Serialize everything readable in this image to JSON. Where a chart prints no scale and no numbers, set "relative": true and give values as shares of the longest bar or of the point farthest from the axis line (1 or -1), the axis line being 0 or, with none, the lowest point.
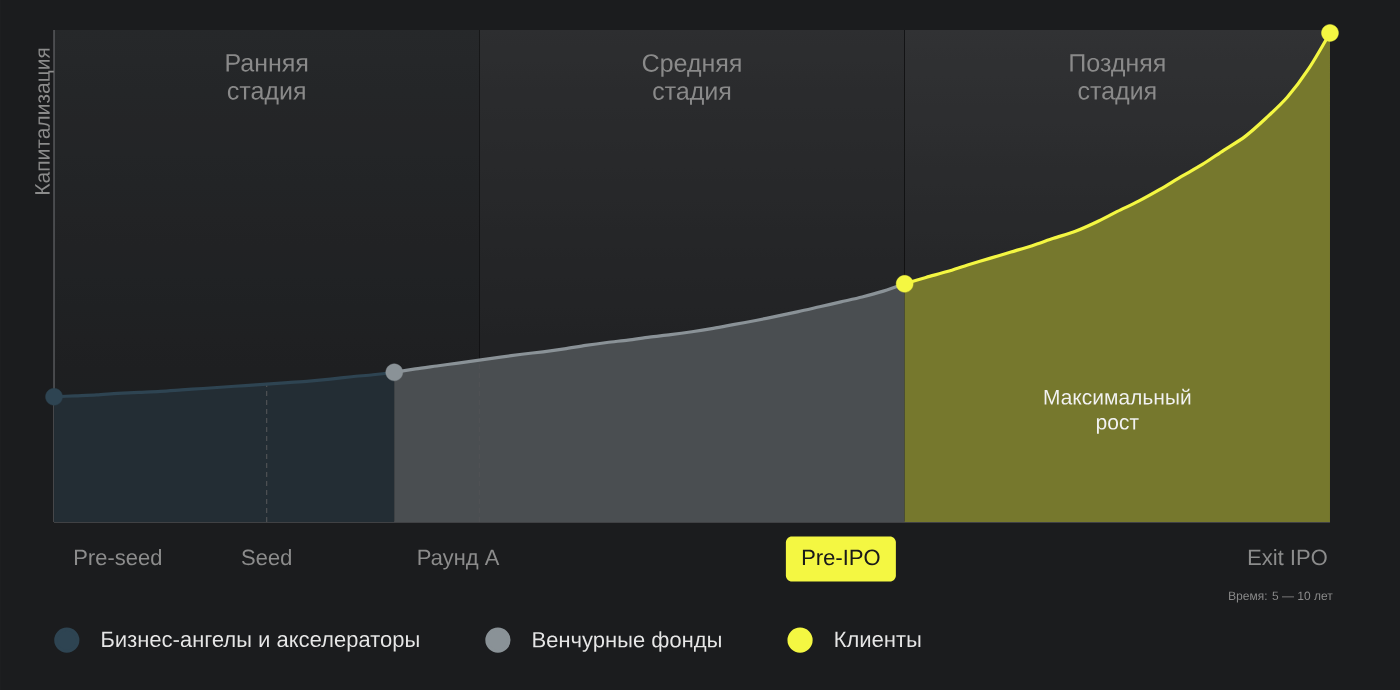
{
  "chart_data": {
    "type": "area",
    "relative": true,
    "ylabel": "Капитализация",
    "categories": [
      null,
      null,
      null,
      "Pre-seed",
      null,
      null,
      null,
      null,
      null,
      null,
      "Seed",
      null,
      null,
      null,
      null,
      null,
      null,
      null,
      null,
      "Раунд А",
      null,
      null,
      null,
      null,
      null,
      null,
      null,
      null,
      null,
      null,
      null,
      null,
      null,
      null,
      null,
      null,
      null,
      "Pre-IPO",
      null,
      null,
      null,
      null,
      null,
      null,
      null,
      null,
      null,
      null,
      null,
      null,
      null,
      null,
      null,
      null,
      null,
      null,
      null,
      null,
      "Exit IPO",
      null,
      null
    ],
    "tick_labels": "x",
    "series": [
      {
        "name": "Бизнес-ангелы и акселераторы",
        "color": "#2e4452",
        "values": [
          0.256,
          0.258,
          0.26,
          0.263,
          0.265,
          0.267,
          0.27,
          0.273,
          0.276,
          0.279,
          0.282,
          0.285,
          0.288,
          0.292,
          0.297,
          0.301,
          0.306,
          null,
          null,
          null,
          null,
          null,
          null,
          null,
          null,
          null,
          null,
          null,
          null,
          null,
          null,
          null,
          null,
          null,
          null,
          null,
          null,
          null,
          null,
          null,
          null,
          null,
          null,
          null,
          null,
          null,
          null,
          null,
          null,
          null,
          null,
          null,
          null,
          null,
          null,
          null,
          null,
          null,
          null,
          null,
          null
        ]
      },
      {
        "name": "Венчурные фонды",
        "color": "#8a9297",
        "values": [
          null,
          null,
          null,
          null,
          null,
          null,
          null,
          null,
          null,
          null,
          null,
          null,
          null,
          null,
          null,
          null,
          0.306,
          0.313,
          0.319,
          0.325,
          0.331,
          0.337,
          0.343,
          0.348,
          0.354,
          0.361,
          0.367,
          0.372,
          0.378,
          0.383,
          0.389,
          0.396,
          0.404,
          0.412,
          0.421,
          0.43,
          0.44,
          0.45,
          0.46,
          0.472,
          0.487,
          null,
          null,
          null,
          null,
          null,
          null,
          null,
          null,
          null,
          null,
          null,
          null,
          null,
          null,
          null,
          null,
          null,
          null,
          null,
          null
        ]
      },
      {
        "name": "Клиенты",
        "color": "#f4f742",
        "values": [
          null,
          null,
          null,
          null,
          null,
          null,
          null,
          null,
          null,
          null,
          null,
          null,
          null,
          null,
          null,
          null,
          null,
          null,
          null,
          null,
          null,
          null,
          null,
          null,
          null,
          null,
          null,
          null,
          null,
          null,
          null,
          null,
          null,
          null,
          null,
          null,
          null,
          null,
          null,
          null,
          0.487,
          0.5,
          0.512,
          0.526,
          0.539,
          0.552,
          0.565,
          0.58,
          0.594,
          0.613,
          0.635,
          0.656,
          0.68,
          0.706,
          0.731,
          0.76,
          0.788,
          0.826,
          0.869,
          0.927,
          1.0
        ]
      },
      {
        "type": "scatter",
        "marker": "circle",
        "values": [
          0.256,
          null,
          null,
          null,
          null,
          null,
          null,
          null,
          null,
          null,
          null,
          null,
          null,
          null,
          null,
          null,
          0.306,
          null,
          null,
          null,
          null,
          null,
          null,
          null,
          null,
          null,
          null,
          null,
          null,
          null,
          null,
          null,
          null,
          null,
          null,
          null,
          null,
          null,
          null,
          null,
          0.487,
          null,
          null,
          null,
          null,
          null,
          null,
          null,
          null,
          null,
          null,
          null,
          null,
          null,
          null,
          null,
          null,
          null,
          null,
          null,
          1.0
        ],
        "colors": [
          "#2e4452",
          null,
          null,
          null,
          null,
          null,
          null,
          null,
          null,
          null,
          null,
          null,
          null,
          null,
          null,
          null,
          "#8a9297",
          null,
          null,
          null,
          null,
          null,
          null,
          null,
          null,
          null,
          null,
          null,
          null,
          null,
          null,
          null,
          null,
          null,
          null,
          null,
          null,
          null,
          null,
          null,
          "#f4f742",
          null,
          null,
          null,
          null,
          null,
          null,
          null,
          null,
          null,
          null,
          null,
          null,
          null,
          null,
          null,
          null,
          null,
          null,
          null,
          "#f4f742"
        ]
      }
    ],
    "ref_lines": [
      {
        "axis": "x",
        "value": "Seed",
        "color": "#505255",
        "line_style": "dashed"
      }
    ],
    "annotations": [
      "Ранняя стадия",
      "Средняя стадия",
      "Поздняя стадия",
      "Максимальный рост",
      "Время: 5 — 10 лет"
    ],
    "legend": "bottom"
  }
}
